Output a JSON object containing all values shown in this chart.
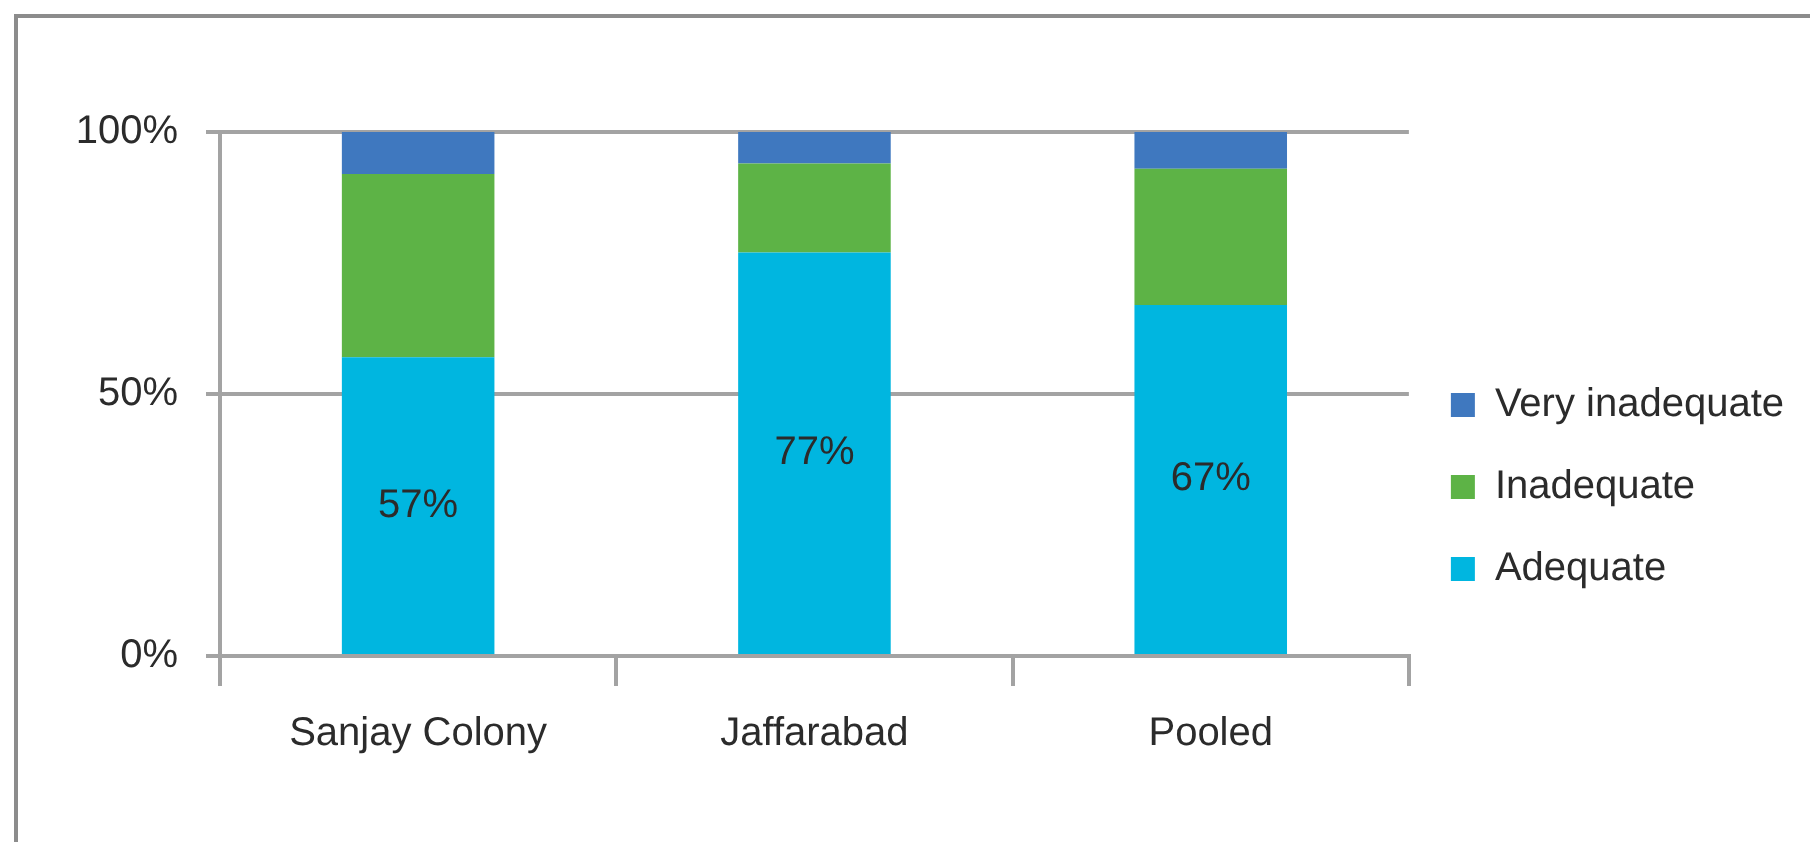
{
  "chart_data": {
    "type": "bar",
    "stacked": true,
    "categories": [
      "Sanjay Colony",
      "Jaffarabad",
      "Pooled"
    ],
    "series": [
      {
        "name": "Adequate",
        "color": "#00b6e0",
        "values": [
          57,
          77,
          67
        ],
        "value_labels": [
          "57%",
          "77%",
          "67%"
        ]
      },
      {
        "name": "Inadequate",
        "color": "#5db346",
        "values": [
          35,
          17,
          26
        ]
      },
      {
        "name": "Very inadequate",
        "color": "#3f78bf",
        "values": [
          8,
          6,
          7
        ]
      }
    ],
    "ylim": [
      0,
      100
    ],
    "yticks": [
      {
        "value": 0,
        "label": "0%"
      },
      {
        "value": 50,
        "label": "50%"
      },
      {
        "value": 100,
        "label": "100%"
      }
    ],
    "grid": "y",
    "legend": "right"
  }
}
